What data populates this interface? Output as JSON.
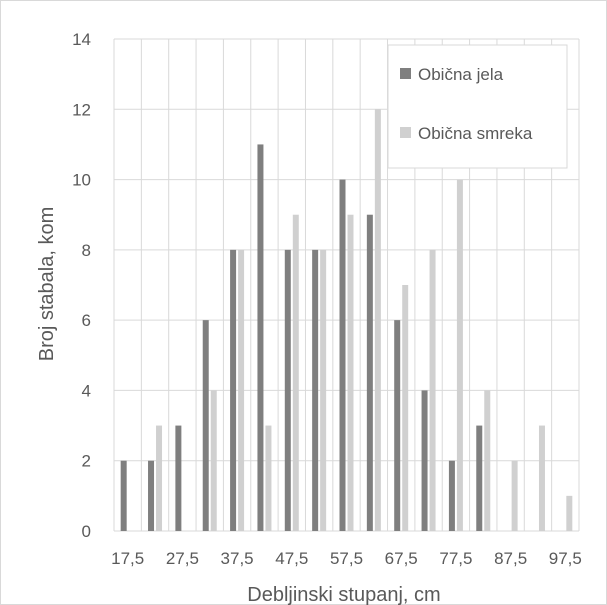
{
  "chart_data": {
    "type": "bar",
    "title": "",
    "xlabel": "Debljinski stupanj, cm",
    "ylabel": "Broj stabala, kom",
    "ylim": [
      0,
      14
    ],
    "yticks": [
      "0",
      "2",
      "4",
      "6",
      "8",
      "10",
      "12",
      "14"
    ],
    "categories": [
      "17,5",
      "22,5",
      "27,5",
      "32,5",
      "37,5",
      "42,5",
      "47,5",
      "52,5",
      "57,5",
      "62,5",
      "67,5",
      "72,5",
      "77,5",
      "82,5",
      "87,5",
      "92,5",
      "97,5"
    ],
    "x_tick_labels": [
      "17,5",
      "27,5",
      "37,5",
      "47,5",
      "57,5",
      "67,5",
      "77,5",
      "87,5",
      "97,5"
    ],
    "series": [
      {
        "name": "Obična jela",
        "color": "#7f7f7f",
        "values": [
          2,
          2,
          3,
          6,
          8,
          11,
          8,
          8,
          10,
          9,
          6,
          4,
          2,
          3,
          0,
          0,
          0
        ]
      },
      {
        "name": "Obična smreka",
        "color": "#d0d0d0",
        "values": [
          0,
          3,
          0,
          4,
          8,
          3,
          9,
          8,
          9,
          12,
          7,
          8,
          10,
          4,
          2,
          3,
          1
        ]
      }
    ],
    "grid": true,
    "legend_position": "top-right"
  }
}
